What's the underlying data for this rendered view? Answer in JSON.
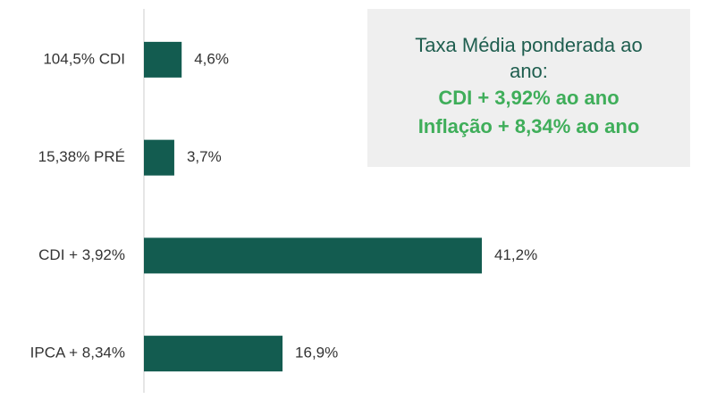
{
  "chart_data": {
    "type": "barh",
    "categories": [
      "104,5% CDI",
      "15,38% PRÉ",
      "CDI + 3,92%",
      "IPCA + 8,34%"
    ],
    "values": [
      4.6,
      3.7,
      41.2,
      16.9
    ],
    "value_labels": [
      "4,6%",
      "3,7%",
      "41,2%",
      "16,9%"
    ],
    "color": "#135c50",
    "annotation": {
      "title": "Taxa Média ponderada ao ano:",
      "lines": [
        "CDI + 3,92% ao ano",
        "Inflação + 8,34% ao ano"
      ]
    }
  }
}
